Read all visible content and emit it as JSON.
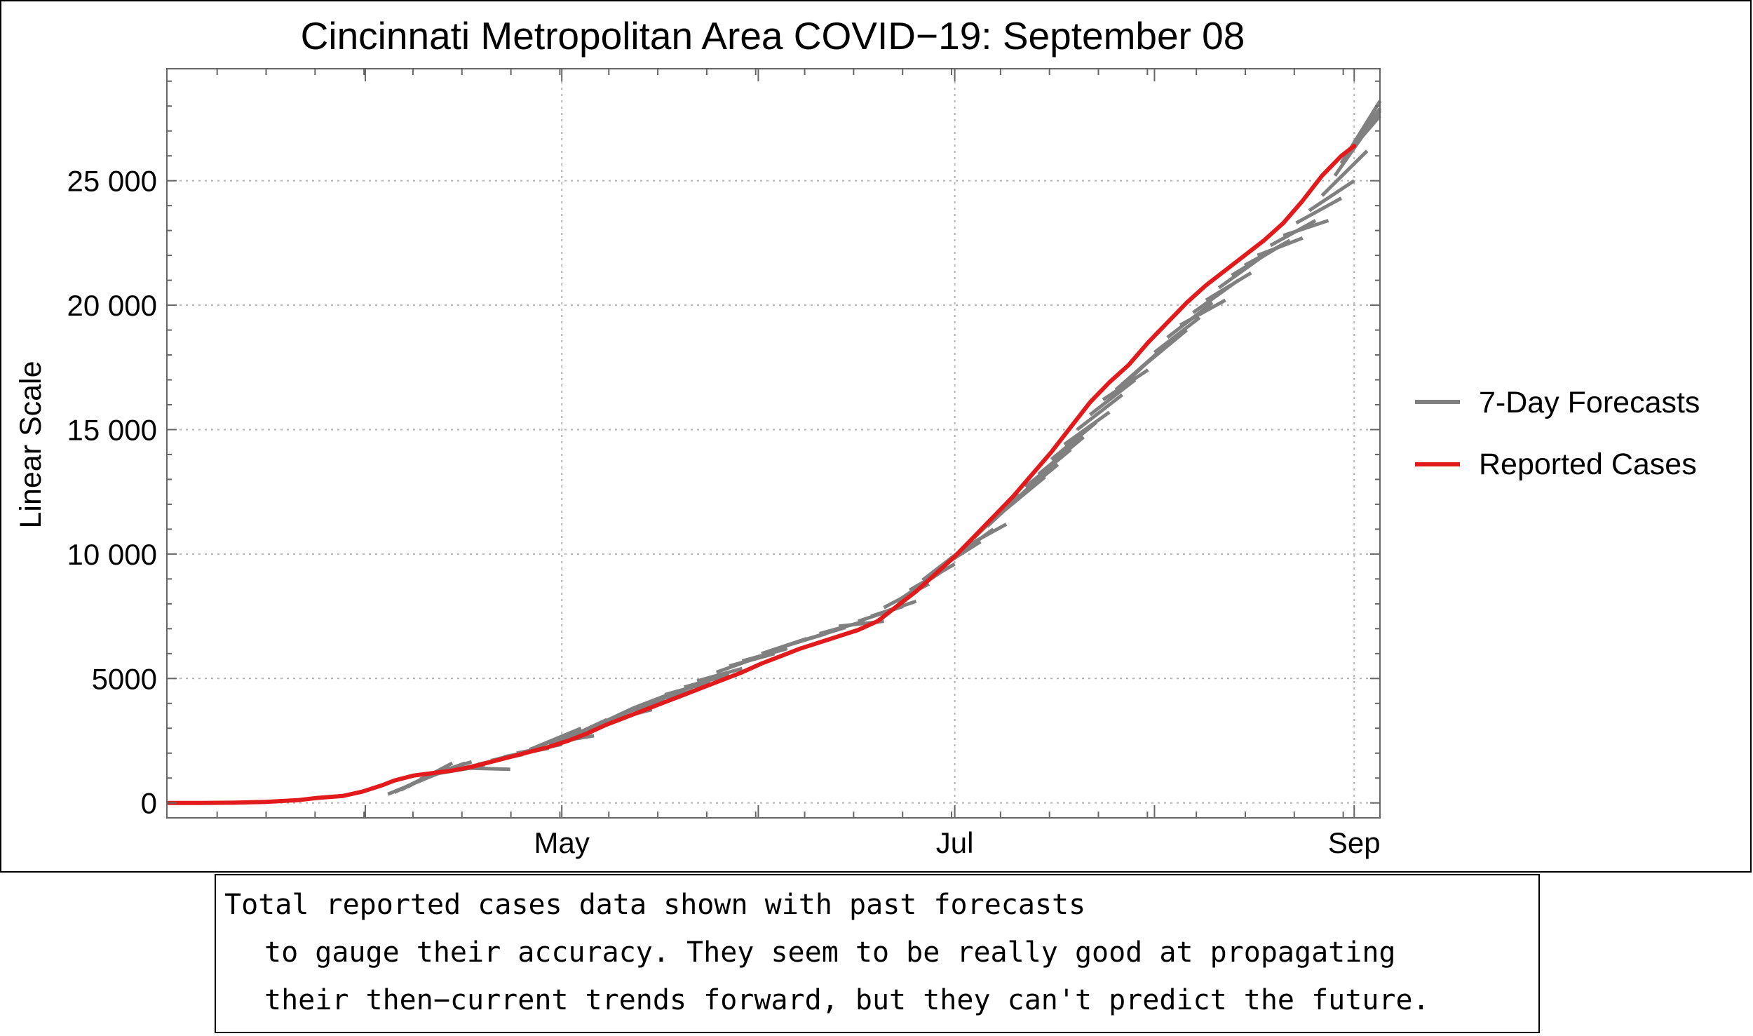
{
  "chart_data": {
    "type": "line",
    "title": "Cincinnati Metropolitan Area COVID−19: September 08",
    "xlabel": "",
    "ylabel": "Linear Scale",
    "x_unit": "days since Mar 1",
    "xlim": [
      -0.3,
      188
    ],
    "ylim": [
      -600,
      29500
    ],
    "yticks": [
      {
        "value": 0,
        "label": "0"
      },
      {
        "value": 5000,
        "label": "5000"
      },
      {
        "value": 10000,
        "label": "10 000"
      },
      {
        "value": 15000,
        "label": "15 000"
      },
      {
        "value": 20000,
        "label": "20 000"
      },
      {
        "value": 25000,
        "label": "25 000"
      }
    ],
    "xticks": [
      {
        "value": 61,
        "label": "May"
      },
      {
        "value": 122,
        "label": "Jul"
      },
      {
        "value": 184,
        "label": "Sep"
      }
    ],
    "x_minor_ticks": [
      30.5,
      91.5,
      153
    ],
    "grid": true,
    "legend_position": "right",
    "series": [
      {
        "name": "7-Day Forecasts",
        "color": "#808080",
        "segments": [
          [
            [
              34,
              350
            ],
            [
              41,
              1100
            ]
          ],
          [
            [
              35,
              420
            ],
            [
              42,
              1300
            ]
          ],
          [
            [
              36,
              520
            ],
            [
              43,
              1450
            ]
          ],
          [
            [
              37,
              640
            ],
            [
              44,
              1600
            ]
          ],
          [
            [
              38,
              800
            ],
            [
              45,
              1500
            ]
          ],
          [
            [
              39,
              950
            ],
            [
              46,
              1600
            ]
          ],
          [
            [
              40,
              1100
            ],
            [
              47,
              1650
            ]
          ],
          [
            [
              41,
              1150
            ],
            [
              48,
              1450
            ]
          ],
          [
            [
              42,
              1200
            ],
            [
              49,
              1500
            ]
          ],
          [
            [
              43,
              1250
            ],
            [
              50,
              1650
            ]
          ],
          [
            [
              44,
              1300
            ],
            [
              51,
              1700
            ]
          ],
          [
            [
              46,
              1400
            ],
            [
              53,
              1350
            ]
          ],
          [
            [
              48,
              1550
            ],
            [
              55,
              1950
            ]
          ],
          [
            [
              50,
              1700
            ],
            [
              57,
              2150
            ]
          ],
          [
            [
              52,
              1850
            ],
            [
              59,
              2200
            ]
          ],
          [
            [
              54,
              2000
            ],
            [
              61,
              2350
            ]
          ],
          [
            [
              56,
              2150
            ],
            [
              63,
              2800
            ]
          ],
          [
            [
              57,
              2250
            ],
            [
              64,
              3000
            ]
          ],
          [
            [
              59,
              2400
            ],
            [
              66,
              2700
            ]
          ],
          [
            [
              61,
              2500
            ],
            [
              68,
              3350
            ]
          ],
          [
            [
              63,
              2750
            ],
            [
              70,
              3500
            ]
          ],
          [
            [
              65,
              2950
            ],
            [
              72,
              3800
            ]
          ],
          [
            [
              68,
              3300
            ],
            [
              75,
              3750
            ]
          ],
          [
            [
              70,
              3550
            ],
            [
              77,
              4150
            ]
          ],
          [
            [
              72,
              3800
            ],
            [
              79,
              4500
            ]
          ],
          [
            [
              75,
              4100
            ],
            [
              82,
              4550
            ]
          ],
          [
            [
              77,
              4350
            ],
            [
              84,
              4850
            ]
          ],
          [
            [
              80,
              4650
            ],
            [
              87,
              5150
            ]
          ],
          [
            [
              82,
              4900
            ],
            [
              89,
              5400
            ]
          ],
          [
            [
              85,
              5250
            ],
            [
              92,
              5900
            ]
          ],
          [
            [
              87,
              5500
            ],
            [
              94,
              6000
            ]
          ],
          [
            [
              89,
              5700
            ],
            [
              96,
              6200
            ]
          ],
          [
            [
              92,
              6000
            ],
            [
              99,
              6600
            ]
          ],
          [
            [
              95,
              6250
            ],
            [
              102,
              6800
            ]
          ],
          [
            [
              98,
              6500
            ],
            [
              105,
              7050
            ]
          ],
          [
            [
              101,
              6800
            ],
            [
              108,
              7300
            ]
          ],
          [
            [
              104,
              7100
            ],
            [
              111,
              7300
            ]
          ],
          [
            [
              107,
              7300
            ],
            [
              114,
              7900
            ]
          ],
          [
            [
              109,
              7500
            ],
            [
              116,
              8100
            ]
          ],
          [
            [
              111,
              7850
            ],
            [
              118,
              8800
            ]
          ],
          [
            [
              113,
              8100
            ],
            [
              120,
              9300
            ]
          ],
          [
            [
              115,
              8550
            ],
            [
              122,
              9600
            ]
          ],
          [
            [
              117,
              8950
            ],
            [
              124,
              10350
            ]
          ],
          [
            [
              119,
              9350
            ],
            [
              126,
              10500
            ]
          ],
          [
            [
              121,
              9700
            ],
            [
              128,
              11000
            ]
          ],
          [
            [
              123,
              10200
            ],
            [
              130,
              11200
            ]
          ],
          [
            [
              125,
              10650
            ],
            [
              132,
              12400
            ]
          ],
          [
            [
              127,
              11100
            ],
            [
              134,
              12800
            ]
          ],
          [
            [
              129,
              11600
            ],
            [
              136,
              13100
            ]
          ],
          [
            [
              131,
              12100
            ],
            [
              138,
              13600
            ]
          ],
          [
            [
              133,
              12700
            ],
            [
              140,
              14200
            ]
          ],
          [
            [
              135,
              13200
            ],
            [
              142,
              14700
            ]
          ],
          [
            [
              137,
              13800
            ],
            [
              144,
              15300
            ]
          ],
          [
            [
              139,
              14400
            ],
            [
              146,
              15700
            ]
          ],
          [
            [
              141,
              15000
            ],
            [
              148,
              16400
            ]
          ],
          [
            [
              143,
              15600
            ],
            [
              150,
              17000
            ]
          ],
          [
            [
              145,
              16200
            ],
            [
              152,
              17400
            ]
          ],
          [
            [
              147,
              16600
            ],
            [
              154,
              18200
            ]
          ],
          [
            [
              149,
              17000
            ],
            [
              156,
              18700
            ]
          ],
          [
            [
              151,
              17500
            ],
            [
              158,
              19000
            ]
          ],
          [
            [
              153,
              18100
            ],
            [
              160,
              19500
            ]
          ],
          [
            [
              155,
              18700
            ],
            [
              162,
              20100
            ]
          ],
          [
            [
              157,
              19200
            ],
            [
              164,
              20200
            ]
          ],
          [
            [
              159,
              19700
            ],
            [
              166,
              21000
            ]
          ],
          [
            [
              161,
              20200
            ],
            [
              168,
              21300
            ]
          ],
          [
            [
              163,
              20700
            ],
            [
              170,
              22000
            ]
          ],
          [
            [
              165,
              21200
            ],
            [
              172,
              22300
            ]
          ],
          [
            [
              167,
              21600
            ],
            [
              174,
              22600
            ]
          ],
          [
            [
              169,
              22000
            ],
            [
              176,
              22700
            ]
          ],
          [
            [
              171,
              22400
            ],
            [
              178,
              23400
            ]
          ],
          [
            [
              173,
              22800
            ],
            [
              180,
              23400
            ]
          ],
          [
            [
              175,
              23300
            ],
            [
              182,
              24300
            ]
          ],
          [
            [
              177,
              23800
            ],
            [
              184,
              25000
            ]
          ],
          [
            [
              179,
              24400
            ],
            [
              186,
              26200
            ]
          ],
          [
            [
              181,
              25200
            ],
            [
              188,
              27800
            ]
          ],
          [
            [
              182,
              25700
            ],
            [
              188,
              28200
            ]
          ],
          [
            [
              183,
              26100
            ],
            [
              188,
              27900
            ]
          ],
          [
            [
              184,
              26400
            ],
            [
              188,
              27600
            ]
          ]
        ]
      },
      {
        "name": "Reported Cases",
        "color": "#e31a1c",
        "x": [
          0,
          5,
          10,
          15,
          20,
          23,
          27,
          30,
          33,
          35,
          38,
          41,
          44,
          47,
          50,
          53,
          56,
          59,
          62,
          65,
          68,
          71,
          74,
          77,
          80,
          83,
          86,
          89,
          92,
          95,
          98,
          101,
          104,
          107,
          110,
          113,
          116,
          119,
          122,
          125,
          128,
          131,
          134,
          137,
          140,
          143,
          146,
          149,
          152,
          155,
          158,
          161,
          164,
          167,
          170,
          173,
          176,
          179,
          182,
          184
        ],
        "values": [
          0,
          0,
          10,
          40,
          110,
          200,
          280,
          450,
          700,
          900,
          1100,
          1200,
          1300,
          1450,
          1650,
          1850,
          2050,
          2250,
          2500,
          2800,
          3150,
          3450,
          3750,
          4050,
          4350,
          4650,
          4950,
          5250,
          5600,
          5900,
          6200,
          6450,
          6700,
          6950,
          7300,
          7900,
          8500,
          9200,
          9900,
          10700,
          11500,
          12300,
          13200,
          14100,
          15100,
          16100,
          16900,
          17600,
          18500,
          19300,
          20100,
          20800,
          21400,
          22000,
          22600,
          23300,
          24200,
          25200,
          26000,
          26400
        ]
      }
    ]
  },
  "caption": {
    "line1": "Total reported cases data shown with past forecasts",
    "line2": "to gauge their accuracy. They seem to be really good at propagating",
    "line3": "their then−current trends forward, but they can't predict the future."
  }
}
